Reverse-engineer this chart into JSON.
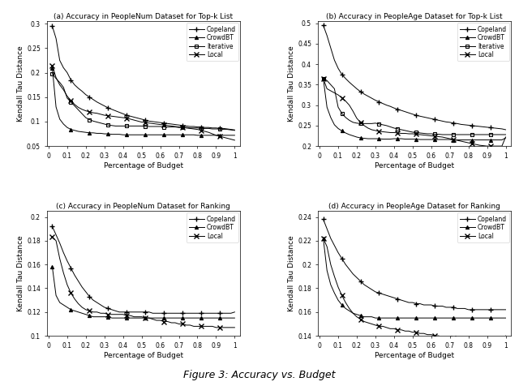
{
  "titles": [
    "(a) Accuracy in PeopleNum Dataset for Top-k List",
    "(b) Accuracy in PeopleAge Dataset for Top-k List",
    "(c) Accuracy in PeopleNum Dataset for Ranking",
    "(d) Accuracy in PeopleAge Dataset for Ranking"
  ],
  "ylabel": "Kendall Tau Distance",
  "xlabel": "Percentage of Budget",
  "x": [
    0.02,
    0.04,
    0.06,
    0.08,
    0.1,
    0.12,
    0.14,
    0.16,
    0.18,
    0.2,
    0.22,
    0.24,
    0.26,
    0.28,
    0.3,
    0.32,
    0.34,
    0.36,
    0.38,
    0.4,
    0.42,
    0.44,
    0.46,
    0.48,
    0.5,
    0.52,
    0.54,
    0.56,
    0.58,
    0.6,
    0.62,
    0.64,
    0.66,
    0.68,
    0.7,
    0.72,
    0.74,
    0.76,
    0.78,
    0.8,
    0.82,
    0.84,
    0.86,
    0.88,
    0.9,
    0.92,
    0.94,
    0.96,
    0.98,
    1.0
  ],
  "subplot_a": {
    "Copeland": [
      0.295,
      0.27,
      0.225,
      0.21,
      0.2,
      0.185,
      0.175,
      0.168,
      0.162,
      0.155,
      0.15,
      0.145,
      0.14,
      0.136,
      0.132,
      0.128,
      0.125,
      0.122,
      0.119,
      0.116,
      0.113,
      0.111,
      0.109,
      0.107,
      0.105,
      0.103,
      0.101,
      0.1,
      0.099,
      0.098,
      0.097,
      0.096,
      0.095,
      0.094,
      0.093,
      0.092,
      0.091,
      0.09,
      0.09,
      0.089,
      0.089,
      0.088,
      0.088,
      0.087,
      0.087,
      0.086,
      0.086,
      0.085,
      0.084,
      0.083
    ],
    "CrowdBT": [
      0.21,
      0.13,
      0.105,
      0.095,
      0.088,
      0.084,
      0.082,
      0.08,
      0.079,
      0.078,
      0.077,
      0.077,
      0.076,
      0.076,
      0.075,
      0.075,
      0.074,
      0.074,
      0.074,
      0.073,
      0.073,
      0.073,
      0.073,
      0.073,
      0.073,
      0.073,
      0.073,
      0.073,
      0.073,
      0.073,
      0.073,
      0.073,
      0.073,
      0.073,
      0.073,
      0.073,
      0.073,
      0.073,
      0.073,
      0.072,
      0.072,
      0.072,
      0.072,
      0.072,
      0.072,
      0.072,
      0.072,
      0.072,
      0.072,
      0.072
    ],
    "Iterative": [
      0.198,
      0.188,
      0.18,
      0.17,
      0.148,
      0.14,
      0.132,
      0.124,
      0.116,
      0.108,
      0.104,
      0.101,
      0.099,
      0.097,
      0.095,
      0.093,
      0.092,
      0.091,
      0.091,
      0.091,
      0.091,
      0.091,
      0.091,
      0.091,
      0.091,
      0.09,
      0.09,
      0.09,
      0.09,
      0.09,
      0.089,
      0.089,
      0.089,
      0.089,
      0.088,
      0.088,
      0.088,
      0.087,
      0.087,
      0.087,
      0.086,
      0.086,
      0.086,
      0.085,
      0.085,
      0.085,
      0.084,
      0.084,
      0.083,
      0.082
    ],
    "Local": [
      0.215,
      0.19,
      0.175,
      0.165,
      0.152,
      0.143,
      0.135,
      0.129,
      0.125,
      0.122,
      0.12,
      0.118,
      0.117,
      0.115,
      0.113,
      0.112,
      0.111,
      0.11,
      0.109,
      0.108,
      0.107,
      0.105,
      0.103,
      0.101,
      0.099,
      0.098,
      0.097,
      0.096,
      0.095,
      0.094,
      0.093,
      0.092,
      0.091,
      0.09,
      0.089,
      0.088,
      0.087,
      0.086,
      0.085,
      0.084,
      0.082,
      0.08,
      0.078,
      0.075,
      0.072,
      0.07,
      0.068,
      0.066,
      0.064,
      0.062
    ],
    "ylim": [
      0.05,
      0.305
    ],
    "yticks": [
      0.05,
      0.1,
      0.15,
      0.2,
      0.25,
      0.3
    ]
  },
  "subplot_b": {
    "Copeland": [
      0.495,
      0.47,
      0.44,
      0.41,
      0.39,
      0.375,
      0.365,
      0.356,
      0.348,
      0.34,
      0.333,
      0.327,
      0.322,
      0.317,
      0.312,
      0.308,
      0.304,
      0.3,
      0.297,
      0.293,
      0.29,
      0.287,
      0.284,
      0.281,
      0.278,
      0.275,
      0.273,
      0.271,
      0.269,
      0.267,
      0.265,
      0.263,
      0.261,
      0.259,
      0.258,
      0.256,
      0.255,
      0.253,
      0.252,
      0.251,
      0.25,
      0.249,
      0.248,
      0.247,
      0.246,
      0.245,
      0.244,
      0.243,
      0.242,
      0.24
    ],
    "CrowdBT": [
      0.365,
      0.295,
      0.27,
      0.252,
      0.243,
      0.237,
      0.232,
      0.228,
      0.225,
      0.222,
      0.22,
      0.219,
      0.218,
      0.218,
      0.218,
      0.218,
      0.217,
      0.217,
      0.217,
      0.218,
      0.218,
      0.218,
      0.217,
      0.217,
      0.217,
      0.217,
      0.216,
      0.216,
      0.216,
      0.216,
      0.216,
      0.216,
      0.216,
      0.216,
      0.216,
      0.215,
      0.215,
      0.215,
      0.215,
      0.215,
      0.215,
      0.215,
      0.215,
      0.215,
      0.215,
      0.215,
      0.215,
      0.215,
      0.215,
      0.22
    ],
    "Iterative": [
      0.365,
      0.36,
      0.35,
      0.34,
      0.295,
      0.28,
      0.27,
      0.263,
      0.258,
      0.256,
      0.255,
      0.255,
      0.255,
      0.255,
      0.256,
      0.254,
      0.252,
      0.25,
      0.247,
      0.244,
      0.242,
      0.24,
      0.238,
      0.236,
      0.234,
      0.233,
      0.232,
      0.231,
      0.23,
      0.23,
      0.229,
      0.229,
      0.228,
      0.228,
      0.228,
      0.228,
      0.228,
      0.228,
      0.228,
      0.228,
      0.228,
      0.228,
      0.228,
      0.228,
      0.228,
      0.228,
      0.228,
      0.228,
      0.228,
      0.228
    ],
    "Local": [
      0.365,
      0.34,
      0.335,
      0.33,
      0.325,
      0.318,
      0.31,
      0.3,
      0.285,
      0.268,
      0.258,
      0.25,
      0.244,
      0.24,
      0.238,
      0.236,
      0.235,
      0.234,
      0.233,
      0.233,
      0.232,
      0.231,
      0.231,
      0.23,
      0.23,
      0.229,
      0.228,
      0.227,
      0.226,
      0.225,
      0.224,
      0.223,
      0.222,
      0.22,
      0.218,
      0.216,
      0.214,
      0.212,
      0.21,
      0.208,
      0.206,
      0.204,
      0.202,
      0.201,
      0.2,
      0.2,
      0.2,
      0.2,
      0.2,
      0.222
    ],
    "ylim": [
      0.2,
      0.505
    ],
    "yticks": [
      0.2,
      0.25,
      0.3,
      0.35,
      0.4,
      0.45,
      0.5
    ]
  },
  "subplot_c": {
    "Copeland": [
      0.192,
      0.185,
      0.178,
      0.17,
      0.163,
      0.157,
      0.151,
      0.146,
      0.141,
      0.137,
      0.133,
      0.13,
      0.128,
      0.126,
      0.124,
      0.123,
      0.122,
      0.121,
      0.12,
      0.12,
      0.12,
      0.12,
      0.12,
      0.12,
      0.12,
      0.12,
      0.12,
      0.119,
      0.119,
      0.119,
      0.119,
      0.119,
      0.119,
      0.119,
      0.119,
      0.119,
      0.119,
      0.119,
      0.119,
      0.119,
      0.119,
      0.119,
      0.119,
      0.119,
      0.119,
      0.119,
      0.119,
      0.119,
      0.119,
      0.12
    ],
    "CrowdBT": [
      0.158,
      0.134,
      0.128,
      0.126,
      0.124,
      0.122,
      0.121,
      0.12,
      0.119,
      0.118,
      0.117,
      0.116,
      0.116,
      0.116,
      0.116,
      0.116,
      0.115,
      0.115,
      0.115,
      0.115,
      0.115,
      0.115,
      0.115,
      0.115,
      0.115,
      0.115,
      0.115,
      0.115,
      0.115,
      0.115,
      0.115,
      0.115,
      0.115,
      0.115,
      0.115,
      0.115,
      0.115,
      0.115,
      0.115,
      0.115,
      0.115,
      0.115,
      0.115,
      0.115,
      0.115,
      0.115,
      0.115,
      0.115,
      0.115,
      0.115
    ],
    "Local": [
      0.183,
      0.18,
      0.165,
      0.153,
      0.143,
      0.136,
      0.131,
      0.127,
      0.124,
      0.122,
      0.121,
      0.12,
      0.12,
      0.119,
      0.119,
      0.118,
      0.118,
      0.118,
      0.118,
      0.118,
      0.117,
      0.117,
      0.116,
      0.116,
      0.116,
      0.115,
      0.115,
      0.114,
      0.113,
      0.113,
      0.112,
      0.112,
      0.111,
      0.111,
      0.11,
      0.11,
      0.109,
      0.109,
      0.108,
      0.108,
      0.108,
      0.108,
      0.108,
      0.108,
      0.107,
      0.107,
      0.107,
      0.107,
      0.107,
      0.107
    ],
    "ylim": [
      0.1,
      0.205
    ],
    "yticks": [
      0.1,
      0.12,
      0.14,
      0.16,
      0.18,
      0.2
    ]
  },
  "subplot_d": {
    "Copeland": [
      0.238,
      0.23,
      0.222,
      0.216,
      0.21,
      0.205,
      0.2,
      0.196,
      0.192,
      0.189,
      0.186,
      0.183,
      0.181,
      0.179,
      0.177,
      0.176,
      0.175,
      0.174,
      0.173,
      0.172,
      0.171,
      0.17,
      0.169,
      0.168,
      0.168,
      0.167,
      0.167,
      0.166,
      0.166,
      0.166,
      0.165,
      0.165,
      0.165,
      0.164,
      0.164,
      0.164,
      0.163,
      0.163,
      0.163,
      0.162,
      0.162,
      0.162,
      0.162,
      0.162,
      0.162,
      0.162,
      0.162,
      0.162,
      0.162,
      0.162
    ],
    "CrowdBT": [
      0.222,
      0.195,
      0.183,
      0.176,
      0.17,
      0.166,
      0.163,
      0.161,
      0.159,
      0.158,
      0.157,
      0.156,
      0.156,
      0.156,
      0.155,
      0.155,
      0.155,
      0.155,
      0.155,
      0.155,
      0.155,
      0.155,
      0.155,
      0.155,
      0.155,
      0.155,
      0.155,
      0.155,
      0.155,
      0.155,
      0.155,
      0.155,
      0.155,
      0.155,
      0.155,
      0.155,
      0.155,
      0.155,
      0.155,
      0.155,
      0.155,
      0.155,
      0.155,
      0.155,
      0.155,
      0.155,
      0.155,
      0.155,
      0.155,
      0.155
    ],
    "Local": [
      0.222,
      0.215,
      0.2,
      0.19,
      0.181,
      0.174,
      0.168,
      0.163,
      0.159,
      0.156,
      0.154,
      0.152,
      0.151,
      0.15,
      0.149,
      0.148,
      0.148,
      0.147,
      0.146,
      0.146,
      0.145,
      0.145,
      0.144,
      0.144,
      0.143,
      0.143,
      0.142,
      0.142,
      0.141,
      0.141,
      0.14,
      0.14,
      0.139,
      0.139,
      0.138,
      0.138,
      0.137,
      0.137,
      0.136,
      0.136,
      0.135,
      0.135,
      0.135,
      0.135,
      0.134,
      0.134,
      0.134,
      0.134,
      0.134,
      0.14
    ],
    "ylim": [
      0.14,
      0.245
    ],
    "yticks": [
      0.14,
      0.16,
      0.18,
      0.2,
      0.22,
      0.24
    ]
  },
  "markers": {
    "Copeland": "+",
    "CrowdBT": "^",
    "Iterative": "s",
    "Local": "x"
  },
  "line_color": "#000000",
  "markevery": 5,
  "caption": "Figure 3: Accuracy vs. Budget"
}
